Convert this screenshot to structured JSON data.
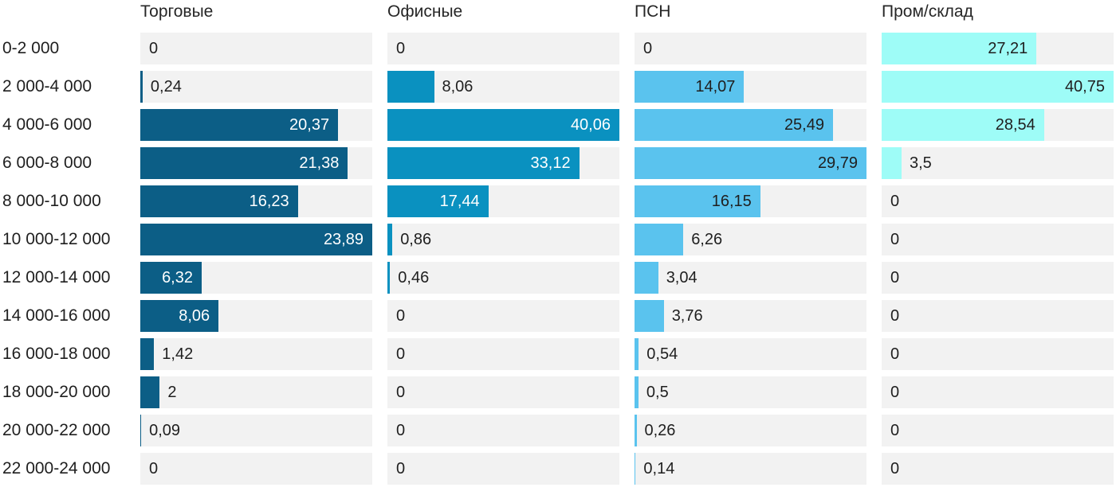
{
  "chart_data": {
    "type": "bar",
    "orientation": "horizontal",
    "title": "",
    "xlabel": "",
    "ylabel": "",
    "legend_position": "top-as-column-headers",
    "grid": false,
    "decimal_separator": ",",
    "per_column_max_scaling": true,
    "track_color": "#f2f2f2",
    "text_color": "#1f1f1f",
    "categories": [
      "0-2 000",
      "2 000-4 000",
      "4 000-6 000",
      "6 000-8 000",
      "8 000-10 000",
      "10 000-12 000",
      "12 000-14 000",
      "14 000-16 000",
      "16 000-18 000",
      "18 000-20 000",
      "20 000-22 000",
      "22 000-24 000"
    ],
    "series": [
      {
        "name": "Торговые",
        "color": "#0c5e86",
        "inside_label_color": "#ffffff",
        "values": [
          0,
          0.24,
          20.37,
          21.38,
          16.23,
          23.89,
          6.32,
          8.06,
          1.42,
          2,
          0.09,
          0
        ]
      },
      {
        "name": "Офисные",
        "color": "#0a91c0",
        "inside_label_color": "#ffffff",
        "values": [
          0,
          8.06,
          40.06,
          33.12,
          17.44,
          0.86,
          0.46,
          0,
          0,
          0,
          0,
          0
        ]
      },
      {
        "name": "ПСН",
        "color": "#5ac3ee",
        "inside_label_color": "#1f1f1f",
        "values": [
          0,
          14.07,
          25.49,
          29.79,
          16.15,
          6.26,
          3.04,
          3.76,
          0.54,
          0.5,
          0.26,
          0.14
        ]
      },
      {
        "name": "Пром/склад",
        "color": "#9efcf7",
        "inside_label_color": "#1f1f1f",
        "values": [
          27.21,
          40.75,
          28.54,
          3.5,
          0,
          0,
          0,
          0,
          0,
          0,
          0,
          0
        ]
      }
    ]
  }
}
